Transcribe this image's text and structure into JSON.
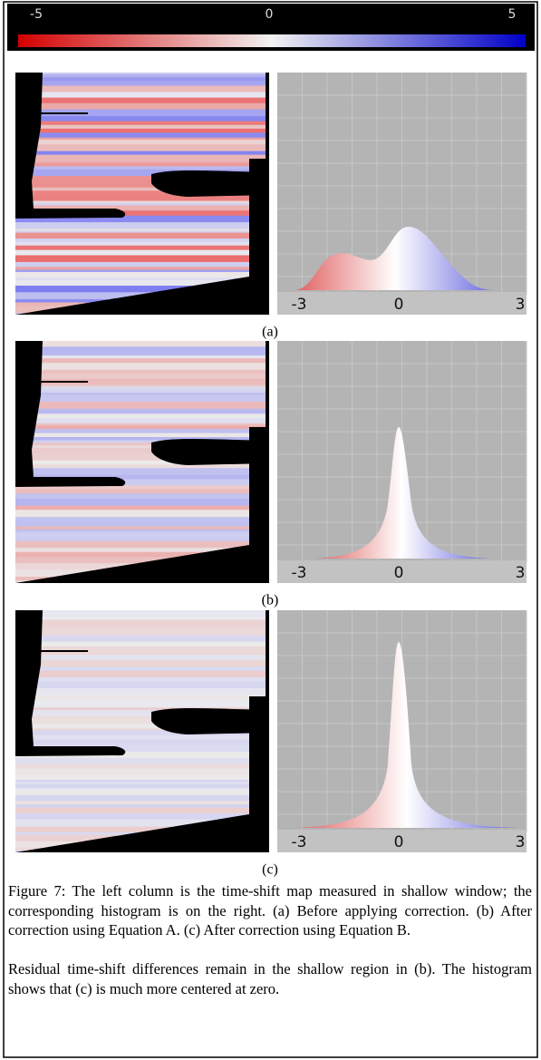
{
  "colorbar": {
    "ticks": [
      "-5",
      "0",
      "5"
    ]
  },
  "panels": [
    {
      "label": "(a)",
      "histogram_ticks": [
        "-3",
        "0",
        "3"
      ]
    },
    {
      "label": "(b)",
      "histogram_ticks": [
        "-3",
        "0",
        "3"
      ]
    },
    {
      "label": "(c)",
      "histogram_ticks": [
        "-3",
        "0",
        "3"
      ]
    }
  ],
  "caption": [
    "Figure 7: The left column is the time-shift map measured in shallow window; the corresponding histogram is on the right. (a) Before applying correction. (b) After correction using Equation A. (c) After correction using Equation B.",
    "Residual time-shift differences remain in the shallow region in (b). The histogram shows that (c) is much more centered at zero."
  ]
}
